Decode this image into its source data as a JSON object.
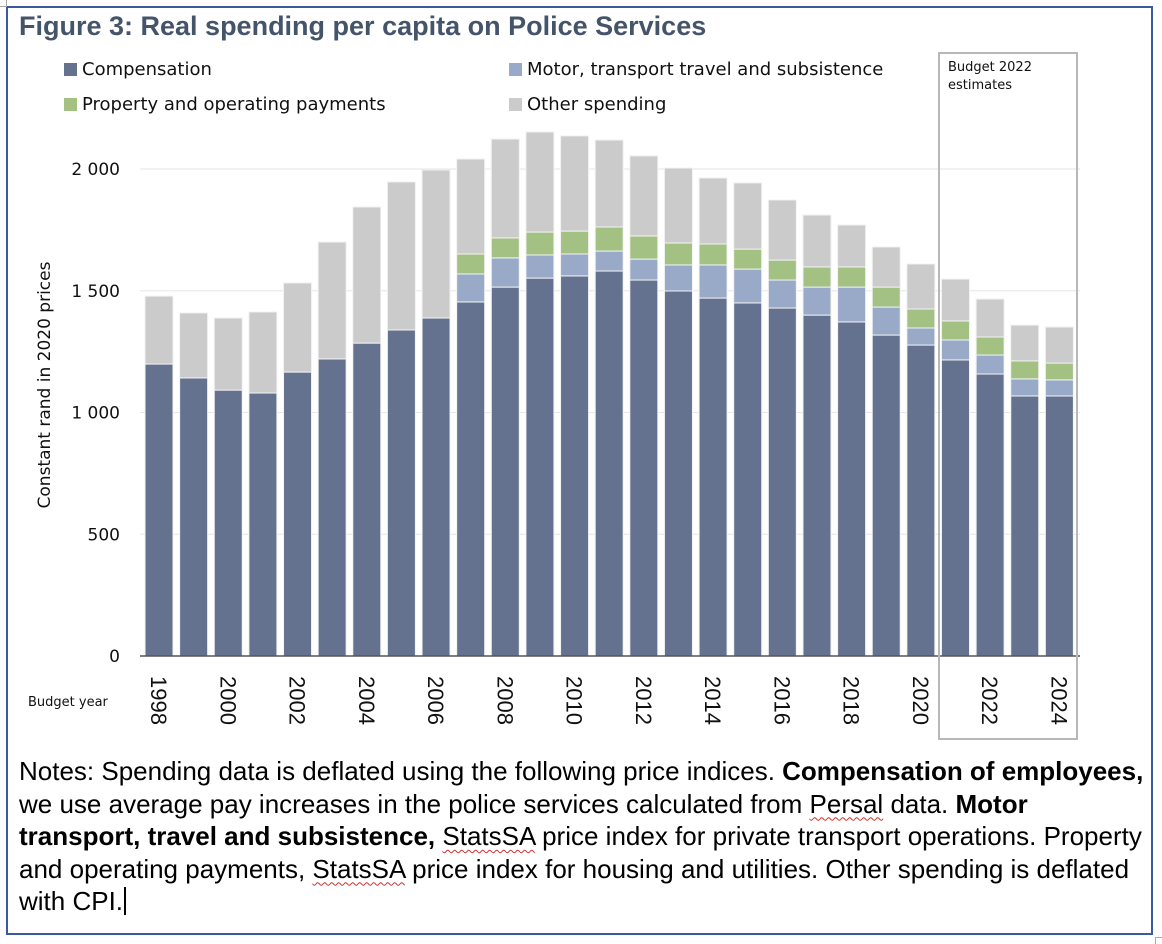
{
  "chart_data": {
    "type": "bar",
    "stacked": true,
    "title": "Figure 3: Real spending per capita on Police Services",
    "xlabel": "Budget year",
    "ylabel": "Constant rand in 2020 prices",
    "ylim": [
      0,
      2200
    ],
    "yticks": [
      0,
      500,
      1000,
      1500,
      2000
    ],
    "ytick_labels": [
      "0",
      "500",
      "1 000",
      "1 500",
      "2 000"
    ],
    "grid": true,
    "legend_position": "top",
    "categories": [
      "1998",
      "1999",
      "2000",
      "2001",
      "2002",
      "2003",
      "2004",
      "2005",
      "2006",
      "2007",
      "2008",
      "2009",
      "2010",
      "2011",
      "2012",
      "2013",
      "2014",
      "2015",
      "2016",
      "2017",
      "2018",
      "2019",
      "2020",
      "2021",
      "2022",
      "2023",
      "2024"
    ],
    "xtick_labels": [
      "1998",
      "2000",
      "2002",
      "2004",
      "2006",
      "2008",
      "2010",
      "2012",
      "2014",
      "2016",
      "2018",
      "2020",
      "2022",
      "2024"
    ],
    "series": [
      {
        "name": "Compensation",
        "color": "#65728f",
        "values": [
          1199,
          1142,
          1092,
          1080,
          1166,
          1220,
          1285,
          1339,
          1388,
          1454,
          1515,
          1552,
          1561,
          1581,
          1544,
          1499,
          1470,
          1450,
          1429,
          1400,
          1372,
          1318,
          1277,
          1216,
          1158,
          1068,
          1068
        ]
      },
      {
        "name": "Motor, transport travel and subsistence",
        "color": "#99a9c8",
        "values": [
          0,
          0,
          0,
          0,
          0,
          0,
          0,
          0,
          0,
          115,
          120,
          95,
          90,
          82,
          86,
          107,
          136,
          139,
          115,
          115,
          143,
          115,
          70,
          82,
          78,
          70,
          66
        ]
      },
      {
        "name": "Property and operating payments",
        "color": "#a2c183",
        "values": [
          0,
          0,
          0,
          0,
          0,
          0,
          0,
          0,
          0,
          82,
          82,
          94,
          94,
          99,
          95,
          90,
          86,
          82,
          82,
          83,
          83,
          82,
          78,
          78,
          74,
          74,
          69
        ]
      },
      {
        "name": "Other spending",
        "color": "#cbcbcb",
        "values": [
          279,
          267,
          296,
          333,
          366,
          480,
          559,
          608,
          608,
          390,
          406,
          411,
          391,
          357,
          329,
          308,
          271,
          272,
          247,
          213,
          172,
          165,
          185,
          172,
          156,
          147,
          148
        ]
      }
    ],
    "annotations": [
      {
        "text": "Budget 2022 estimates",
        "applies_to": [
          "2021",
          "2022",
          "2023",
          "2024"
        ]
      }
    ]
  },
  "notes": {
    "segments": [
      {
        "text": "Notes: Spending data is deflated using the following price indices. ",
        "bold": false
      },
      {
        "text": "Compensation of employees,",
        "bold": true
      },
      {
        "text": " we use average pay increases in the police services calculated from ",
        "bold": false
      },
      {
        "text": "Persal",
        "bold": false,
        "spellcheck": true
      },
      {
        "text": " data. ",
        "bold": false
      },
      {
        "text": "Motor transport, travel and subsistence,",
        "bold": true
      },
      {
        "text": " ",
        "bold": false
      },
      {
        "text": "StatsSA",
        "bold": false,
        "spellcheck": true
      },
      {
        "text": " price index for private transport operations. Property and operating payments, ",
        "bold": false
      },
      {
        "text": "StatsSA",
        "bold": false,
        "spellcheck": true
      },
      {
        "text": " price index for housing and utilities. Other spending is deflated with CPI.",
        "bold": false
      }
    ]
  }
}
